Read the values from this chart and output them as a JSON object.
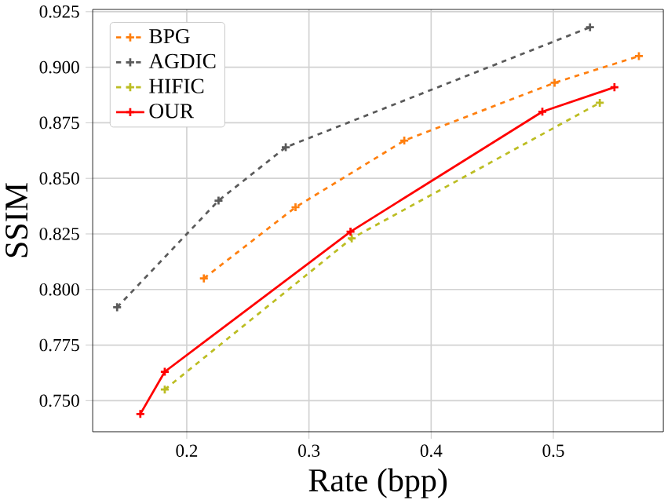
{
  "chart_data": {
    "type": "line",
    "xlabel": "Rate (bpp)",
    "ylabel": "SSIM",
    "xlim": [
      0.123,
      0.59
    ],
    "ylim": [
      0.736,
      0.926
    ],
    "xticks": [
      0.2,
      0.3,
      0.4,
      0.5
    ],
    "yticks": [
      {
        "value": 0.75,
        "label": "0.750"
      },
      {
        "value": 0.775,
        "label": "0.775"
      },
      {
        "value": 0.8,
        "label": "0.800"
      },
      {
        "value": 0.825,
        "label": "0.825"
      },
      {
        "value": 0.85,
        "label": "0.850"
      },
      {
        "value": 0.875,
        "label": "0.875"
      },
      {
        "value": 0.9,
        "label": "0.900"
      },
      {
        "value": 0.925,
        "label": "0.925"
      }
    ],
    "grid": true,
    "legend": "top left",
    "marker": "cross",
    "series": [
      {
        "name": "BPG",
        "color": "#ff7f0e",
        "line_style": "dashed",
        "x": [
          0.214,
          0.289,
          0.378,
          0.501,
          0.57
        ],
        "values": [
          0.805,
          0.837,
          0.867,
          0.893,
          0.905
        ]
      },
      {
        "name": "AGDIC",
        "color": "#5a5a5a",
        "line_style": "dashed",
        "x": [
          0.143,
          0.226,
          0.281,
          0.53
        ],
        "values": [
          0.792,
          0.84,
          0.864,
          0.918
        ]
      },
      {
        "name": "HIFIC",
        "color": "#bcbd22",
        "line_style": "dashed",
        "x": [
          0.182,
          0.335,
          0.538
        ],
        "values": [
          0.755,
          0.823,
          0.884
        ]
      },
      {
        "name": "OUR",
        "color": "#ff0000",
        "line_style": "solid",
        "x": [
          0.162,
          0.182,
          0.334,
          0.491,
          0.55
        ],
        "values": [
          0.744,
          0.763,
          0.826,
          0.88,
          0.891
        ]
      }
    ]
  }
}
